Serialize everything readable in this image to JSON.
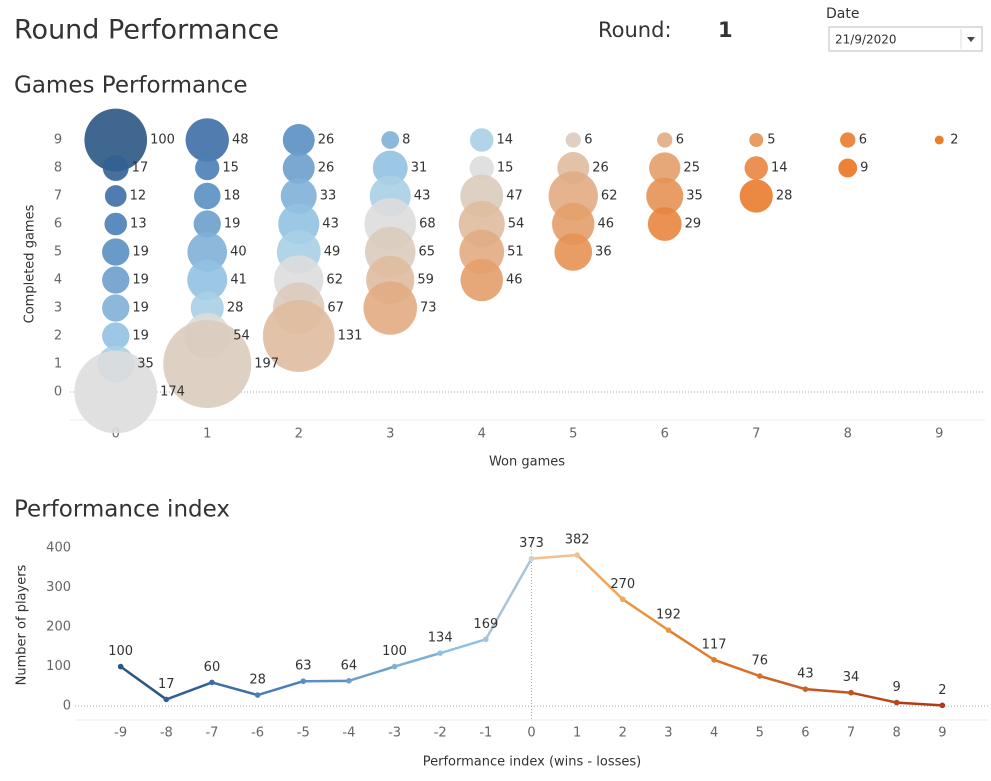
{
  "header": {
    "title": "Round Performance",
    "round_label": "Round:",
    "round_value": "1",
    "date_label": "Date",
    "date_value": "21/9/2020"
  },
  "chart_data": [
    {
      "type": "bubble",
      "title": "Games Performance",
      "x_label": "Won games",
      "y_label": "Completed games",
      "x": [
        0,
        0,
        0,
        0,
        0,
        0,
        0,
        0,
        0,
        0,
        1,
        1,
        1,
        1,
        1,
        1,
        1,
        1,
        1,
        2,
        2,
        2,
        2,
        2,
        2,
        2,
        2,
        3,
        3,
        3,
        3,
        3,
        3,
        3,
        4,
        4,
        4,
        4,
        4,
        4,
        5,
        5,
        5,
        5,
        5,
        6,
        6,
        6,
        6,
        7,
        7,
        7,
        8,
        8,
        9
      ],
      "y": [
        9,
        8,
        7,
        6,
        5,
        4,
        3,
        2,
        1,
        0,
        9,
        8,
        7,
        6,
        5,
        4,
        3,
        2,
        1,
        9,
        8,
        7,
        6,
        5,
        4,
        3,
        2,
        9,
        8,
        7,
        6,
        5,
        4,
        3,
        9,
        8,
        7,
        6,
        5,
        4,
        9,
        8,
        7,
        6,
        5,
        9,
        8,
        7,
        6,
        9,
        8,
        7,
        9,
        8,
        9
      ],
      "sizes": [
        100,
        17,
        12,
        13,
        19,
        19,
        19,
        19,
        35,
        174,
        48,
        15,
        18,
        19,
        40,
        41,
        28,
        54,
        197,
        26,
        26,
        33,
        43,
        49,
        62,
        67,
        131,
        8,
        31,
        43,
        68,
        65,
        59,
        73,
        14,
        15,
        47,
        54,
        51,
        46,
        6,
        26,
        62,
        46,
        36,
        6,
        25,
        35,
        29,
        5,
        14,
        28,
        6,
        9,
        2
      ],
      "colors": [
        "#2a5783",
        "#336094",
        "#3d6ea6",
        "#4a7fb6",
        "#5a8fc2",
        "#6b9fcc",
        "#7eb0d7",
        "#91c1e2",
        "#a8cfe6",
        "#dddddd",
        "#3d6ea6",
        "#4a7fb6",
        "#5a8fc2",
        "#6b9fcc",
        "#7eb0d7",
        "#91c1e2",
        "#a8cfe6",
        "#dddddd",
        "#dccbbe",
        "#5a8fc2",
        "#6b9fcc",
        "#7eb0d7",
        "#91c1e2",
        "#a8cfe6",
        "#dddddd",
        "#dccbbe",
        "#dfbb9f",
        "#7eb0d7",
        "#91c1e2",
        "#a8cfe6",
        "#dddddd",
        "#dccbbe",
        "#dfbb9f",
        "#e2ac83",
        "#a8cfe6",
        "#dddddd",
        "#dccbbe",
        "#dfbb9f",
        "#e2ac83",
        "#e49e6a",
        "#dccbbe",
        "#dfbb9f",
        "#e2ac83",
        "#e49e6a",
        "#e69254",
        "#e2ac83",
        "#e49e6a",
        "#e69254",
        "#e88540",
        "#e69254",
        "#e88540",
        "#e97b2e",
        "#e97b2e",
        "#ea741f",
        "#eb6d10"
      ],
      "xlim": [
        -0.5,
        9.5
      ],
      "ylim": [
        -1,
        10
      ],
      "xticks": [
        0,
        1,
        2,
        3,
        4,
        5,
        6,
        7,
        8,
        9
      ],
      "yticks": [
        0,
        1,
        2,
        3,
        4,
        5,
        6,
        7,
        8,
        9
      ]
    },
    {
      "type": "line",
      "title": "Performance index",
      "x_label": "Performance index (wins - losses)",
      "y_label": "Number of players",
      "x": [
        -9,
        -8,
        -7,
        -6,
        -5,
        -4,
        -3,
        -2,
        -1,
        0,
        1,
        2,
        3,
        4,
        5,
        6,
        7,
        8,
        9
      ],
      "values": [
        100,
        17,
        60,
        28,
        63,
        64,
        100,
        134,
        169,
        373,
        382,
        270,
        192,
        117,
        76,
        43,
        34,
        9,
        2
      ],
      "colors": [
        "#2a5783",
        "#336094",
        "#3d6ea6",
        "#4a7fb6",
        "#5a8fc2",
        "#6b9fcc",
        "#7eb0d7",
        "#91c1e2",
        "#a8c4d8",
        "#d0d0d0",
        "#f2c28c",
        "#f0a85e",
        "#ea9440",
        "#e07e2c",
        "#d8702a",
        "#cc6226",
        "#c25420",
        "#b8481c",
        "#ad3c18"
      ],
      "xlim": [
        -10,
        10
      ],
      "ylim": [
        -35,
        425
      ],
      "xticks": [
        -9,
        -8,
        -7,
        -6,
        -5,
        -4,
        -3,
        -2,
        -1,
        0,
        1,
        2,
        3,
        4,
        5,
        6,
        7,
        8,
        9
      ],
      "yticks": [
        0,
        100,
        200,
        300,
        400
      ]
    }
  ]
}
